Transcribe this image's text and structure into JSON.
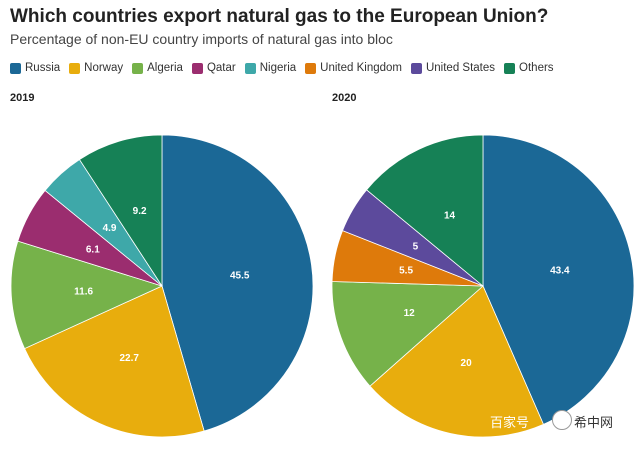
{
  "title": "Which countries export natural gas to the European Union?",
  "subtitle": "Percentage of non-EU country imports of natural gas into bloc",
  "legend": [
    {
      "label": "Russia",
      "color": "#1b6896"
    },
    {
      "label": "Norway",
      "color": "#e8ad0d"
    },
    {
      "label": "Algeria",
      "color": "#76b24a"
    },
    {
      "label": "Qatar",
      "color": "#9b2d6f"
    },
    {
      "label": "Nigeria",
      "color": "#3ea8a9"
    },
    {
      "label": "United Kingdom",
      "color": "#de7a0b"
    },
    {
      "label": "United States",
      "color": "#5c4a9c"
    },
    {
      "label": "Others",
      "color": "#168156"
    }
  ],
  "chart_data": [
    {
      "type": "pie",
      "title": "2019",
      "slices": [
        {
          "label": "Russia",
          "value": 45.5,
          "color": "#1b6896"
        },
        {
          "label": "Norway",
          "value": 22.7,
          "color": "#e8ad0d"
        },
        {
          "label": "Algeria",
          "value": 11.6,
          "color": "#76b24a"
        },
        {
          "label": "Qatar",
          "value": 6.1,
          "color": "#9b2d6f"
        },
        {
          "label": "Nigeria",
          "value": 4.9,
          "color": "#3ea8a9"
        },
        {
          "label": "Others",
          "value": 9.2,
          "color": "#168156"
        }
      ]
    },
    {
      "type": "pie",
      "title": "2020",
      "slices": [
        {
          "label": "Russia",
          "value": 43.4,
          "color": "#1b6896"
        },
        {
          "label": "Norway",
          "value": 20,
          "color": "#e8ad0d"
        },
        {
          "label": "Algeria",
          "value": 12,
          "color": "#76b24a"
        },
        {
          "label": "United Kingdom",
          "value": 5.5,
          "color": "#de7a0b"
        },
        {
          "label": "United States",
          "value": 5,
          "color": "#5c4a9c"
        },
        {
          "label": "Others",
          "value": 14,
          "color": "#168156"
        }
      ]
    }
  ],
  "watermark": {
    "text1": "百家号",
    "text2": "希中网"
  }
}
